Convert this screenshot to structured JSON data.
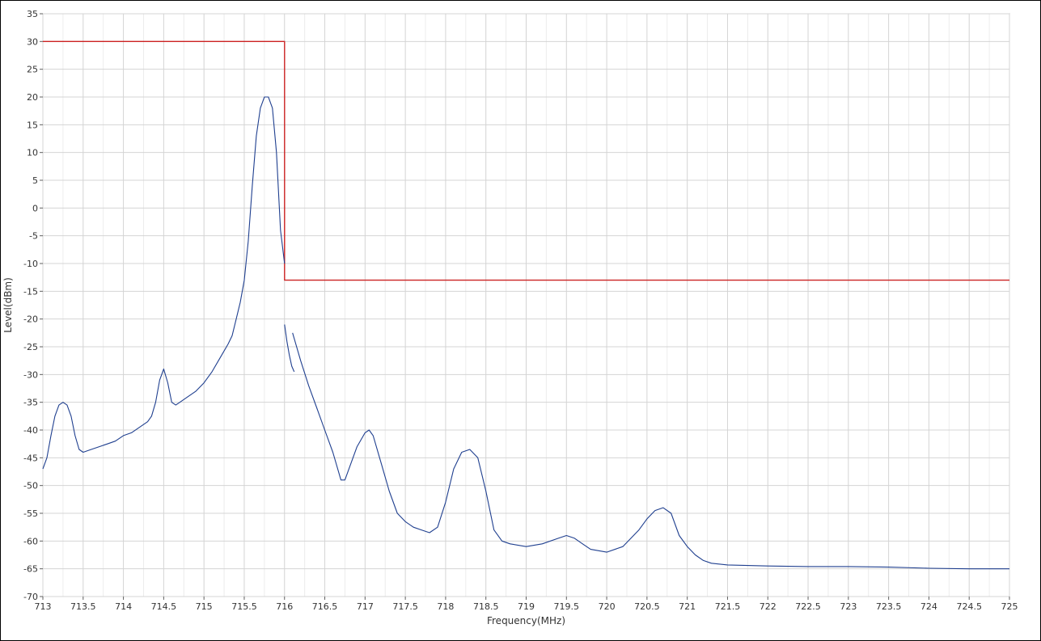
{
  "chart_data": {
    "type": "line",
    "title": "",
    "xlabel": "Frequency(MHz)",
    "ylabel": "Level(dBm)",
    "xlim": [
      713,
      725
    ],
    "ylim": [
      -70,
      35
    ],
    "grid": true,
    "x_ticks": [
      "713",
      "713.5",
      "714",
      "714.5",
      "715",
      "715.5",
      "716",
      "716.5",
      "717",
      "717.5",
      "718",
      "718.5",
      "719",
      "719.5",
      "720",
      "720.5",
      "721",
      "721.5",
      "722",
      "722.5",
      "723",
      "723.5",
      "724",
      "724.5",
      "725"
    ],
    "y_ticks": [
      "35",
      "30",
      "25",
      "20",
      "15",
      "10",
      "5",
      "0",
      "-5",
      "-10",
      "-15",
      "-20",
      "-25",
      "-30",
      "-35",
      "-40",
      "-45",
      "-50",
      "-55",
      "-60",
      "-65",
      "-70"
    ],
    "series": [
      {
        "color": "#cc2222",
        "points": [
          [
            713,
            30
          ],
          [
            716,
            30
          ],
          [
            716,
            -13
          ],
          [
            725,
            -13
          ]
        ]
      },
      {
        "color": "#1f3f8f",
        "segments": [
          [
            [
              713,
              -47
            ],
            [
              713.05,
              -45
            ],
            [
              713.1,
              -41
            ],
            [
              713.15,
              -37.5
            ],
            [
              713.2,
              -35.5
            ],
            [
              713.25,
              -35
            ],
            [
              713.3,
              -35.5
            ],
            [
              713.35,
              -37.5
            ],
            [
              713.4,
              -41
            ],
            [
              713.45,
              -43.5
            ],
            [
              713.5,
              -44
            ],
            [
              713.6,
              -43.5
            ],
            [
              713.7,
              -43
            ],
            [
              713.8,
              -42.5
            ],
            [
              713.9,
              -42
            ],
            [
              714,
              -41
            ],
            [
              714.1,
              -40.5
            ],
            [
              714.2,
              -39.5
            ],
            [
              714.3,
              -38.5
            ],
            [
              714.35,
              -37.5
            ],
            [
              714.4,
              -35
            ],
            [
              714.45,
              -31
            ],
            [
              714.5,
              -29
            ],
            [
              714.55,
              -31.5
            ],
            [
              714.6,
              -35
            ],
            [
              714.65,
              -35.5
            ],
            [
              714.7,
              -35
            ],
            [
              714.8,
              -34
            ],
            [
              714.9,
              -33
            ],
            [
              715,
              -31.5
            ],
            [
              715.1,
              -29.5
            ],
            [
              715.2,
              -27
            ],
            [
              715.3,
              -24.5
            ],
            [
              715.35,
              -23
            ],
            [
              715.4,
              -20
            ],
            [
              715.45,
              -17
            ],
            [
              715.5,
              -13
            ],
            [
              715.55,
              -6
            ],
            [
              715.6,
              4
            ],
            [
              715.65,
              13
            ],
            [
              715.7,
              18
            ],
            [
              715.75,
              20
            ],
            [
              715.8,
              20
            ],
            [
              715.85,
              18
            ],
            [
              715.9,
              10
            ],
            [
              715.95,
              -4
            ],
            [
              716,
              -10
            ]
          ],
          [
            [
              716,
              -21
            ],
            [
              716.03,
              -24
            ],
            [
              716.06,
              -26.5
            ],
            [
              716.09,
              -28.5
            ],
            [
              716.12,
              -29.5
            ]
          ],
          [
            [
              716.1,
              -22.5
            ],
            [
              716.15,
              -25
            ],
            [
              716.2,
              -27.5
            ],
            [
              716.3,
              -32
            ],
            [
              716.4,
              -36
            ],
            [
              716.5,
              -40
            ],
            [
              716.6,
              -44
            ],
            [
              716.65,
              -46.5
            ],
            [
              716.7,
              -49
            ],
            [
              716.75,
              -49
            ],
            [
              716.8,
              -47
            ],
            [
              716.9,
              -43
            ],
            [
              717,
              -40.5
            ],
            [
              717.05,
              -40
            ],
            [
              717.1,
              -41
            ],
            [
              717.2,
              -46
            ],
            [
              717.3,
              -51
            ],
            [
              717.4,
              -55
            ],
            [
              717.5,
              -56.5
            ],
            [
              717.6,
              -57.5
            ],
            [
              717.7,
              -58
            ],
            [
              717.8,
              -58.5
            ],
            [
              717.9,
              -57.5
            ],
            [
              718,
              -53
            ],
            [
              718.1,
              -47
            ],
            [
              718.2,
              -44
            ],
            [
              718.3,
              -43.5
            ],
            [
              718.4,
              -45
            ],
            [
              718.5,
              -51
            ],
            [
              718.6,
              -58
            ],
            [
              718.7,
              -60
            ],
            [
              718.8,
              -60.5
            ],
            [
              719,
              -61
            ],
            [
              719.2,
              -60.5
            ],
            [
              719.4,
              -59.5
            ],
            [
              719.5,
              -59
            ],
            [
              719.6,
              -59.5
            ],
            [
              719.7,
              -60.5
            ],
            [
              719.8,
              -61.5
            ],
            [
              720,
              -62
            ],
            [
              720.2,
              -61
            ],
            [
              720.4,
              -58
            ],
            [
              720.5,
              -56
            ],
            [
              720.6,
              -54.5
            ],
            [
              720.7,
              -54
            ],
            [
              720.8,
              -55
            ],
            [
              720.9,
              -59
            ],
            [
              721,
              -61
            ],
            [
              721.1,
              -62.5
            ],
            [
              721.2,
              -63.5
            ],
            [
              721.3,
              -64
            ],
            [
              721.5,
              -64.3
            ],
            [
              722,
              -64.5
            ],
            [
              722.5,
              -64.6
            ],
            [
              723,
              -64.6
            ],
            [
              723.5,
              -64.7
            ],
            [
              724,
              -64.9
            ],
            [
              724.5,
              -65
            ],
            [
              725,
              -65
            ]
          ]
        ]
      }
    ]
  }
}
